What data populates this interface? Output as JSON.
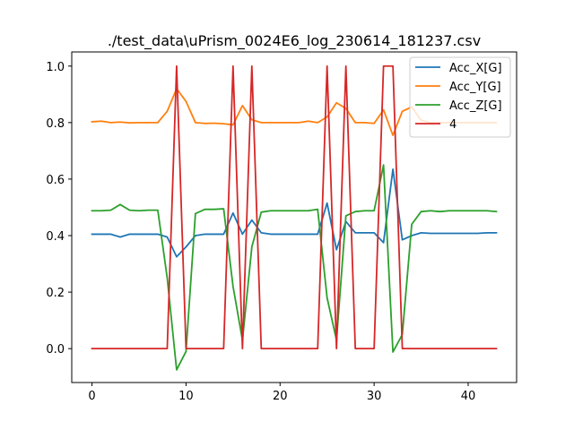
{
  "chart_data": {
    "type": "line",
    "title": "./test_data\\uPrism_0024E6_log_230614_181237.csv",
    "xlabel": "",
    "ylabel": "",
    "xlim": [
      -2.15,
      45.15
    ],
    "ylim": [
      -0.12,
      1.05
    ],
    "xticks": [
      0,
      10,
      20,
      30,
      40
    ],
    "yticks": [
      0.0,
      0.2,
      0.4,
      0.6,
      0.8,
      1.0
    ],
    "grid": false,
    "legend_position": "top-right",
    "x": [
      0,
      1,
      2,
      3,
      4,
      5,
      6,
      7,
      8,
      9,
      10,
      11,
      12,
      13,
      14,
      15,
      16,
      17,
      18,
      19,
      20,
      21,
      22,
      23,
      24,
      25,
      26,
      27,
      28,
      29,
      30,
      31,
      32,
      33,
      34,
      35,
      36,
      37,
      38,
      39,
      40,
      41,
      42,
      43
    ],
    "series": [
      {
        "name": "Acc_X[G]",
        "color": "#1f77b4",
        "values": [
          0.405,
          0.405,
          0.405,
          0.395,
          0.405,
          0.405,
          0.405,
          0.405,
          0.395,
          0.325,
          0.36,
          0.4,
          0.405,
          0.405,
          0.405,
          0.48,
          0.405,
          0.455,
          0.41,
          0.405,
          0.405,
          0.405,
          0.405,
          0.405,
          0.405,
          0.515,
          0.35,
          0.45,
          0.41,
          0.41,
          0.41,
          0.375,
          0.635,
          0.385,
          0.4,
          0.41,
          0.408,
          0.408,
          0.408,
          0.408,
          0.408,
          0.408,
          0.41,
          0.41
        ]
      },
      {
        "name": "Acc_Y[G]",
        "color": "#ff7f0e",
        "values": [
          0.803,
          0.805,
          0.8,
          0.802,
          0.799,
          0.8,
          0.8,
          0.8,
          0.84,
          0.92,
          0.875,
          0.8,
          0.797,
          0.798,
          0.796,
          0.792,
          0.86,
          0.81,
          0.8,
          0.8,
          0.8,
          0.8,
          0.8,
          0.805,
          0.8,
          0.82,
          0.87,
          0.85,
          0.8,
          0.8,
          0.797,
          0.845,
          0.755,
          0.84,
          0.855,
          0.808,
          0.8,
          0.8,
          0.8,
          0.8,
          0.8,
          0.8,
          0.8,
          0.8
        ]
      },
      {
        "name": "Acc_Z[G]",
        "color": "#2ca02c",
        "values": [
          0.488,
          0.488,
          0.49,
          0.51,
          0.49,
          0.488,
          0.49,
          0.49,
          0.25,
          -0.075,
          -0.01,
          0.478,
          0.493,
          0.493,
          0.495,
          0.22,
          0.03,
          0.36,
          0.483,
          0.488,
          0.488,
          0.488,
          0.488,
          0.488,
          0.493,
          0.18,
          0.03,
          0.47,
          0.485,
          0.488,
          0.488,
          0.65,
          -0.012,
          0.05,
          0.44,
          0.485,
          0.488,
          0.485,
          0.488,
          0.488,
          0.488,
          0.488,
          0.488,
          0.485
        ]
      },
      {
        "name": "4",
        "color": "#d62728",
        "values": [
          0,
          0,
          0,
          0,
          0,
          0,
          0,
          0,
          0,
          1,
          0,
          0,
          0,
          0,
          0,
          1,
          0,
          1,
          0,
          0,
          0,
          0,
          0,
          0,
          0,
          1,
          0,
          1,
          0,
          0,
          0,
          1,
          1,
          0,
          0,
          0,
          0,
          0,
          0,
          0,
          0,
          0,
          0,
          0
        ]
      }
    ]
  }
}
